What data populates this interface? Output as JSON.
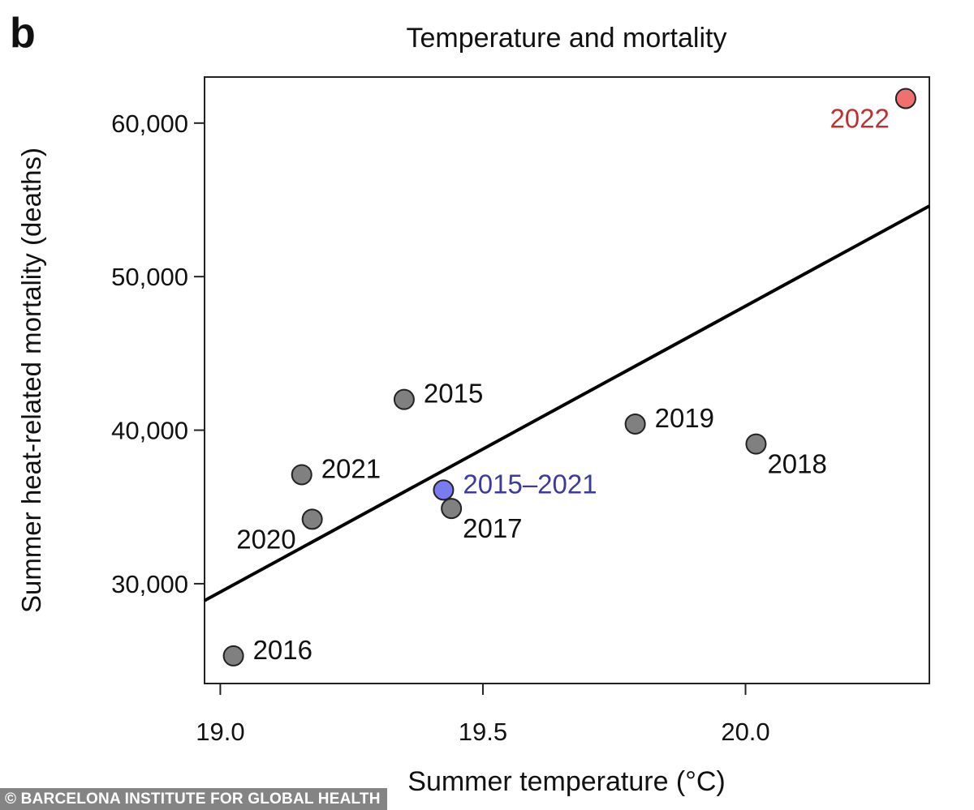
{
  "panel_letter": "b",
  "credit": "© BARCELONA INSTITUTE FOR GLOBAL HEALTH",
  "chart_data": {
    "type": "scatter",
    "title": "Temperature and mortality",
    "xlabel": "Summer temperature (°C)",
    "ylabel": "Summer heat-related mortality (deaths)",
    "xlim": [
      18.97,
      20.35
    ],
    "ylim": [
      23500,
      63000
    ],
    "x_ticks": [
      19.0,
      19.5,
      20.0
    ],
    "x_tick_labels": [
      "19.0",
      "19.5",
      "20.0"
    ],
    "y_ticks": [
      30000,
      40000,
      50000,
      60000
    ],
    "y_tick_labels": [
      "30,000",
      "40,000",
      "50,000",
      "60,000"
    ],
    "grid": false,
    "legend": "none",
    "colors": {
      "default_point": "#808080",
      "average_point": "#7b7bf0",
      "average_label": "#3a3aa0",
      "highlight_point": "#f07070",
      "highlight_label": "#c03030",
      "trend_line": "#000000"
    },
    "points": [
      {
        "label": "2015",
        "x": 19.35,
        "y": 42000,
        "style": "default",
        "label_pos": "right"
      },
      {
        "label": "2016",
        "x": 19.025,
        "y": 25300,
        "style": "default",
        "label_pos": "right"
      },
      {
        "label": "2017",
        "x": 19.44,
        "y": 34900,
        "style": "default",
        "label_pos": "below-right"
      },
      {
        "label": "2018",
        "x": 20.02,
        "y": 39100,
        "style": "default",
        "label_pos": "below-right"
      },
      {
        "label": "2019",
        "x": 19.79,
        "y": 40400,
        "style": "default",
        "label_pos": "right"
      },
      {
        "label": "2020",
        "x": 19.175,
        "y": 34200,
        "style": "default",
        "label_pos": "below-left"
      },
      {
        "label": "2021",
        "x": 19.155,
        "y": 37100,
        "style": "default",
        "label_pos": "right"
      },
      {
        "label": "2015–2021",
        "x": 19.425,
        "y": 36100,
        "style": "average",
        "label_pos": "right"
      },
      {
        "label": "2022",
        "x": 20.305,
        "y": 61600,
        "style": "highlight",
        "label_pos": "below-left"
      }
    ],
    "trend_line": {
      "x": [
        18.97,
        20.35
      ],
      "y": [
        28900,
        54600
      ]
    }
  }
}
